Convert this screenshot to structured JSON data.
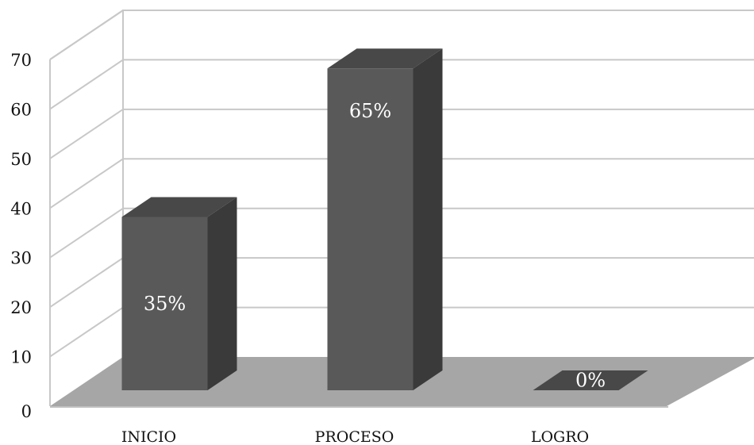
{
  "chart_data": {
    "type": "bar",
    "three_d": true,
    "categories": [
      "INICIO",
      "PROCESO",
      "LOGRO"
    ],
    "values": [
      35,
      65,
      0
    ],
    "data_labels": [
      "35%",
      "65%",
      "0%"
    ],
    "ylim": [
      0,
      70
    ],
    "yticks": [
      "0",
      "10",
      "20",
      "30",
      "40",
      "50",
      "60",
      "70"
    ],
    "grid": true,
    "legend": "none",
    "colors": {
      "bar_front": "#595959",
      "bar_side": "#3a3a3a",
      "bar_top": "#484848",
      "floor": "#a6a6a6",
      "grid": "#c8c8c8"
    }
  }
}
